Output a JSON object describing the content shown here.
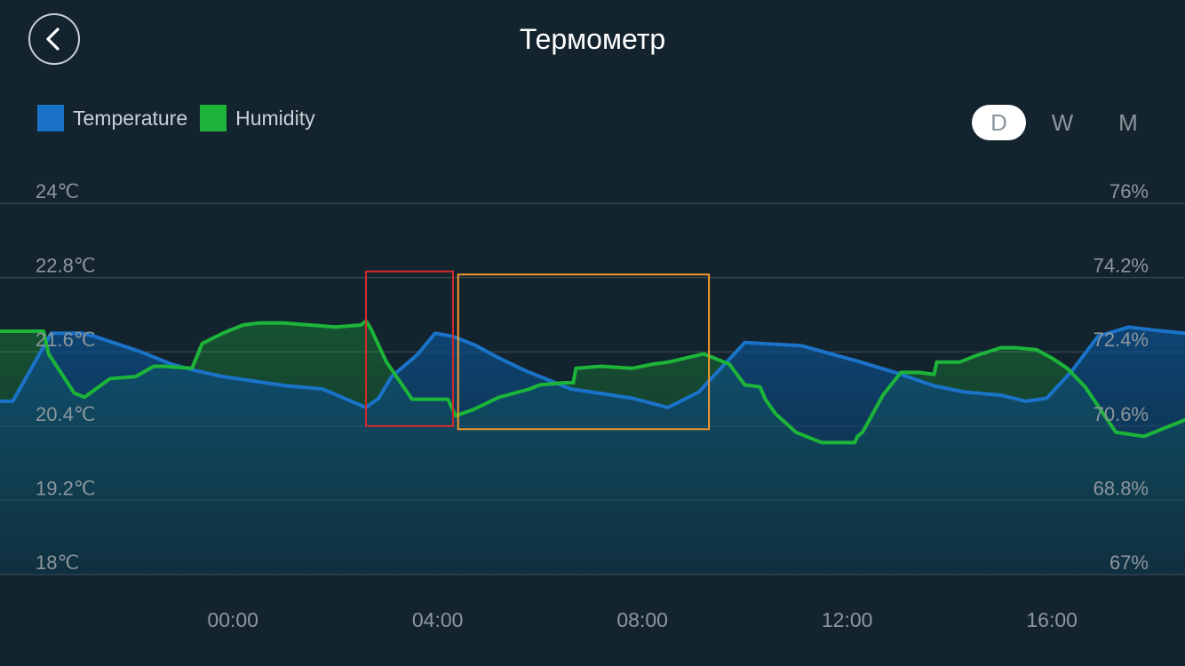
{
  "header": {
    "title": "Термометр"
  },
  "colors": {
    "background": "#14242e",
    "temperature": "#1a73c8",
    "humidity": "#1cb539",
    "highlight_red": "#d42a2a",
    "highlight_orange": "#f29a2e"
  },
  "range_tabs": [
    {
      "label": "D",
      "selected": true
    },
    {
      "label": "W",
      "selected": false
    },
    {
      "label": "M",
      "selected": false
    }
  ],
  "chart_data": {
    "type": "area",
    "legend_placement": "top-left",
    "grid": true,
    "x_ticks": [
      "00:00",
      "04:00",
      "08:00",
      "12:00",
      "16:00"
    ],
    "x_tick_hours": [
      0,
      4,
      8,
      12,
      16
    ],
    "xlim": [
      -4.55,
      18.6
    ],
    "y_left": {
      "ticks": [
        "24℃",
        "22.8℃",
        "21.6℃",
        "20.4℃",
        "19.2℃",
        "18℃"
      ],
      "tick_values": [
        24,
        22.8,
        21.6,
        20.4,
        19.2,
        18
      ],
      "ylim": [
        18,
        24
      ]
    },
    "y_right": {
      "ticks": [
        "76%",
        "74.2%",
        "72.4%",
        "70.6%",
        "68.8%",
        "67%"
      ],
      "tick_values": [
        76,
        74.2,
        72.4,
        70.6,
        68.8,
        67
      ],
      "ylim": [
        67,
        76
      ]
    },
    "series": [
      {
        "name": "Temperature",
        "axis": "left",
        "x": [
          -4.55,
          -4.3,
          -3.55,
          -2.95,
          -2.7,
          -1.8,
          -1.2,
          -0.75,
          -0.2,
          1.05,
          1.75,
          2.6,
          2.85,
          3.1,
          3.6,
          3.95,
          4.3,
          4.75,
          5.2,
          5.7,
          6.6,
          7.8,
          8.5,
          9.1,
          10.0,
          11.1,
          12.2,
          13.0,
          13.7,
          14.3,
          15.0,
          15.5,
          15.9,
          16.4,
          16.9,
          17.5,
          18.0,
          18.6
        ],
        "y": [
          20.8,
          20.8,
          21.9,
          21.9,
          21.85,
          21.6,
          21.4,
          21.3,
          21.2,
          21.05,
          21.0,
          20.7,
          20.85,
          21.2,
          21.55,
          21.9,
          21.85,
          21.7,
          21.5,
          21.3,
          21.0,
          20.85,
          20.7,
          20.95,
          21.75,
          21.7,
          21.45,
          21.25,
          21.05,
          20.95,
          20.9,
          20.8,
          20.85,
          21.3,
          21.85,
          22.0,
          21.95,
          21.9
        ]
      },
      {
        "name": "Humidity",
        "axis": "right",
        "x": [
          -4.55,
          -3.8,
          -3.7,
          -3.6,
          -3.1,
          -2.9,
          -2.4,
          -1.9,
          -1.55,
          -1.35,
          -0.8,
          -0.7,
          -0.6,
          -0.2,
          0.2,
          0.5,
          1.0,
          1.5,
          2.0,
          2.5,
          2.6,
          2.7,
          3.0,
          3.5,
          3.8,
          4.2,
          4.35,
          4.7,
          5.2,
          5.8,
          6.0,
          6.5,
          6.65,
          6.7,
          7.2,
          7.8,
          8.2,
          8.5,
          9.2,
          9.7,
          10.0,
          10.3,
          10.4,
          10.6,
          11.0,
          11.5,
          12.15,
          12.2,
          12.3,
          12.7,
          13.05,
          13.4,
          13.7,
          13.75,
          14.2,
          14.5,
          15.0,
          15.3,
          15.7,
          16.0,
          16.3,
          16.65,
          17.25,
          17.8,
          18.6
        ],
        "y": [
          72.9,
          72.9,
          72.9,
          72.35,
          71.4,
          71.3,
          71.75,
          71.8,
          72.05,
          72.05,
          72.0,
          72.3,
          72.6,
          72.85,
          73.05,
          73.1,
          73.1,
          73.05,
          73.0,
          73.05,
          73.15,
          72.95,
          72.15,
          71.25,
          71.25,
          71.25,
          70.85,
          71.0,
          71.3,
          71.5,
          71.6,
          71.65,
          71.65,
          72.0,
          72.05,
          72.0,
          72.1,
          72.15,
          72.35,
          72.1,
          71.6,
          71.55,
          71.25,
          70.9,
          70.45,
          70.2,
          70.2,
          70.35,
          70.45,
          71.35,
          71.9,
          71.9,
          71.85,
          72.15,
          72.15,
          72.3,
          72.5,
          72.5,
          72.45,
          72.25,
          72.0,
          71.55,
          70.45,
          70.35,
          70.75
        ]
      }
    ],
    "annotations": [
      {
        "type": "rect",
        "color": "red",
        "x0": 2.6,
        "x1": 4.3,
        "y0": 20.4,
        "y1": 22.9,
        "axis": "left"
      },
      {
        "type": "rect",
        "color": "orange",
        "x0": 4.4,
        "x1": 9.3,
        "y0": 20.35,
        "y1": 22.85,
        "axis": "left"
      }
    ]
  }
}
